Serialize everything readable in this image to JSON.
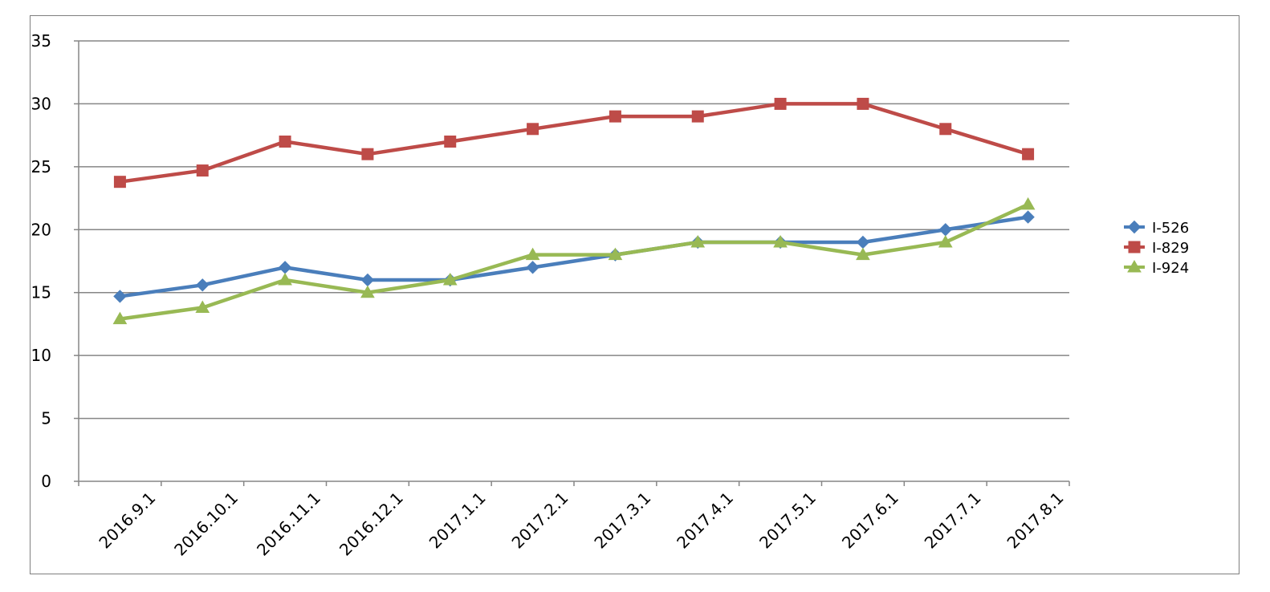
{
  "chart_data": {
    "type": "line",
    "title": "",
    "xlabel": "",
    "ylabel": "",
    "categories": [
      "2016.9.1",
      "2016.10.1",
      "2016.11.1",
      "2016.12.1",
      "2017.1.1",
      "2017.2.1",
      "2017.3.1",
      "2017.4.1",
      "2017.5.1",
      "2017.6.1",
      "2017.7.1",
      "2017.8.1"
    ],
    "ylim": [
      0,
      35
    ],
    "yticks": [
      0,
      5,
      10,
      15,
      20,
      25,
      30,
      35
    ],
    "grid": "horizontal",
    "legend_position": "right",
    "series": [
      {
        "name": "I-526",
        "color": "#4a7ebb",
        "marker": "diamond",
        "values": [
          14.7,
          15.6,
          17,
          16,
          16,
          17,
          18,
          19,
          19,
          19,
          20,
          21
        ]
      },
      {
        "name": "I-829",
        "color": "#be4b48",
        "marker": "square",
        "values": [
          23.8,
          24.7,
          27,
          26,
          27,
          28,
          29,
          29,
          30,
          30,
          28,
          26
        ]
      },
      {
        "name": "I-924",
        "color": "#98b954",
        "marker": "triangle",
        "values": [
          12.9,
          13.8,
          16,
          15,
          16,
          18,
          18,
          19,
          19,
          18,
          19,
          22
        ]
      }
    ]
  }
}
